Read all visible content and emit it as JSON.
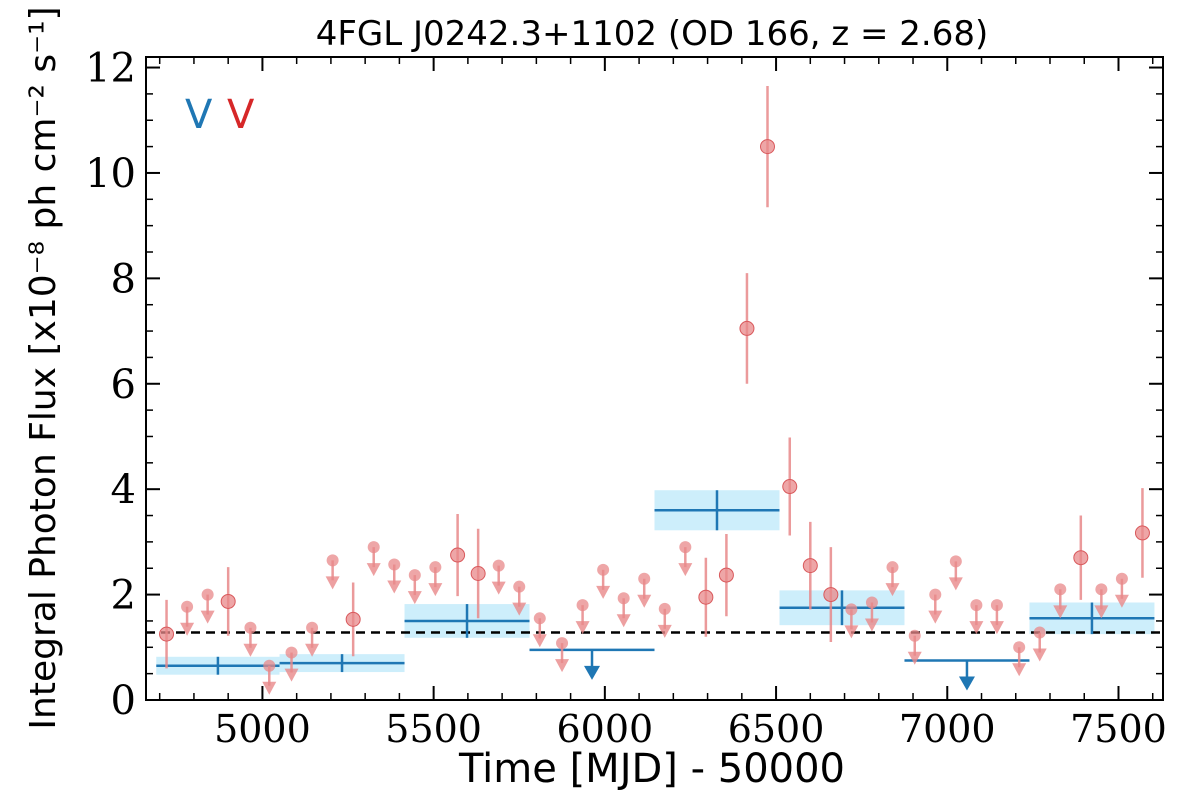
{
  "chart_data": {
    "type": "scatter",
    "title": "4FGL J0242.3+1102 (OD 166, z = 2.68)",
    "xlabel": "Time [MJD] - 50000",
    "ylabel": "Integral Photon Flux [x10⁻⁸ ph cm⁻² s⁻¹]",
    "xlim": [
      4660,
      7630
    ],
    "ylim": [
      0,
      12.2
    ],
    "x_ticks": [
      5000,
      5500,
      6000,
      6500,
      7000,
      7500
    ],
    "y_ticks": [
      0,
      2,
      4,
      6,
      8,
      10,
      12
    ],
    "legend_markers": [
      {
        "text": "V",
        "color": "#1f77b4"
      },
      {
        "text": "V",
        "color": "#d62728"
      }
    ],
    "reference_line": {
      "y": 1.28,
      "style": "dashed"
    },
    "series": [
      {
        "color": "#1f77b4",
        "band_color": "#cdeefb",
        "bins": [
          {
            "x0": 4690,
            "x1": 5050,
            "y": 0.65,
            "err": 0.17
          },
          {
            "x0": 5050,
            "x1": 5415,
            "y": 0.7,
            "err": 0.17
          },
          {
            "x0": 5415,
            "x1": 5780,
            "y": 1.5,
            "err": 0.32
          },
          {
            "x0": 6145,
            "x1": 6510,
            "y": 3.6,
            "err": 0.38
          },
          {
            "x0": 6510,
            "x1": 6875,
            "y": 1.75,
            "err": 0.33
          },
          {
            "x0": 7240,
            "x1": 7605,
            "y": 1.55,
            "err": 0.3
          }
        ],
        "upper_limits": [
          {
            "x0": 5780,
            "x1": 6145,
            "y": 0.95
          },
          {
            "x0": 6875,
            "x1": 7240,
            "y": 0.75
          }
        ]
      },
      {
        "color": "#e8888a",
        "points": [
          {
            "x": 4720,
            "y": 1.25,
            "err": 0.65
          },
          {
            "x": 4900,
            "y": 1.87,
            "err": 0.65
          },
          {
            "x": 5265,
            "y": 1.53,
            "err": 0.7
          },
          {
            "x": 5570,
            "y": 2.75,
            "err": 0.78
          },
          {
            "x": 5630,
            "y": 2.4,
            "err": 0.85
          },
          {
            "x": 6295,
            "y": 1.95,
            "err": 0.75
          },
          {
            "x": 6355,
            "y": 2.37,
            "err": 0.78
          },
          {
            "x": 6415,
            "y": 7.05,
            "err": 1.05
          },
          {
            "x": 6475,
            "y": 10.5,
            "err": 1.15
          },
          {
            "x": 6540,
            "y": 4.05,
            "err": 0.93
          },
          {
            "x": 6600,
            "y": 2.55,
            "err": 0.83
          },
          {
            "x": 6660,
            "y": 2.0,
            "err": 0.9
          },
          {
            "x": 7390,
            "y": 2.7,
            "err": 0.8
          },
          {
            "x": 7570,
            "y": 3.17,
            "err": 0.85
          }
        ],
        "upper_limits": [
          {
            "x": 4780,
            "y": 1.77
          },
          {
            "x": 4840,
            "y": 2.0
          },
          {
            "x": 4965,
            "y": 1.37
          },
          {
            "x": 5020,
            "y": 0.65
          },
          {
            "x": 5085,
            "y": 0.9
          },
          {
            "x": 5145,
            "y": 1.37
          },
          {
            "x": 5205,
            "y": 2.65
          },
          {
            "x": 5325,
            "y": 2.9
          },
          {
            "x": 5385,
            "y": 2.57
          },
          {
            "x": 5445,
            "y": 2.37
          },
          {
            "x": 5505,
            "y": 2.52
          },
          {
            "x": 5690,
            "y": 2.55
          },
          {
            "x": 5750,
            "y": 2.15
          },
          {
            "x": 5810,
            "y": 1.55
          },
          {
            "x": 5875,
            "y": 1.08
          },
          {
            "x": 5935,
            "y": 1.8
          },
          {
            "x": 5995,
            "y": 2.47
          },
          {
            "x": 6055,
            "y": 1.93
          },
          {
            "x": 6115,
            "y": 2.3
          },
          {
            "x": 6175,
            "y": 1.73
          },
          {
            "x": 6235,
            "y": 2.9
          },
          {
            "x": 6720,
            "y": 1.72
          },
          {
            "x": 6780,
            "y": 1.85
          },
          {
            "x": 6840,
            "y": 2.52
          },
          {
            "x": 6905,
            "y": 1.22
          },
          {
            "x": 6965,
            "y": 2.0
          },
          {
            "x": 7025,
            "y": 2.63
          },
          {
            "x": 7085,
            "y": 1.8
          },
          {
            "x": 7145,
            "y": 1.8
          },
          {
            "x": 7210,
            "y": 1.0
          },
          {
            "x": 7270,
            "y": 1.28
          },
          {
            "x": 7330,
            "y": 2.1
          },
          {
            "x": 7450,
            "y": 2.1
          },
          {
            "x": 7510,
            "y": 2.3
          }
        ]
      }
    ]
  }
}
